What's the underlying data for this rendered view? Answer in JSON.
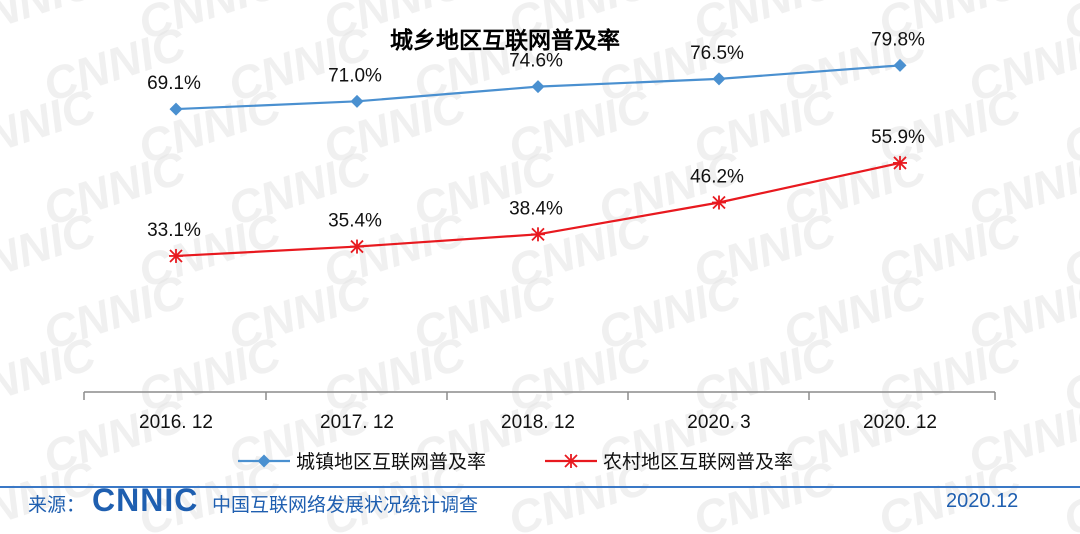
{
  "chart_data": {
    "type": "line",
    "title": "城乡地区互联网普及率",
    "categories": [
      "2016. 12",
      "2017. 12",
      "2018. 12",
      "2020. 3",
      "2020. 12"
    ],
    "series": [
      {
        "name": "城镇地区互联网普及率",
        "values": [
          69.1,
          71.0,
          74.6,
          76.5,
          79.8
        ],
        "labels": [
          "69.1%",
          "71.0%",
          "74.6%",
          "76.5%",
          "79.8%"
        ],
        "color": "#4a90d0",
        "marker": "diamond"
      },
      {
        "name": "农村地区互联网普及率",
        "values": [
          33.1,
          35.4,
          38.4,
          46.2,
          55.9
        ],
        "labels": [
          "33.1%",
          "35.4%",
          "38.4%",
          "46.2%",
          "55.9%"
        ],
        "color": "#e8191f",
        "marker": "asterisk"
      }
    ],
    "ylim": [
      0,
      100
    ],
    "grid": false,
    "legend": "bottom"
  },
  "watermark": "CNNIC",
  "footer": {
    "source_label": "来源：",
    "logo": "CNNIC",
    "report": "中国互联网络发展状况统计调查",
    "date": "2020.12",
    "accent": "#1f5fb0"
  }
}
